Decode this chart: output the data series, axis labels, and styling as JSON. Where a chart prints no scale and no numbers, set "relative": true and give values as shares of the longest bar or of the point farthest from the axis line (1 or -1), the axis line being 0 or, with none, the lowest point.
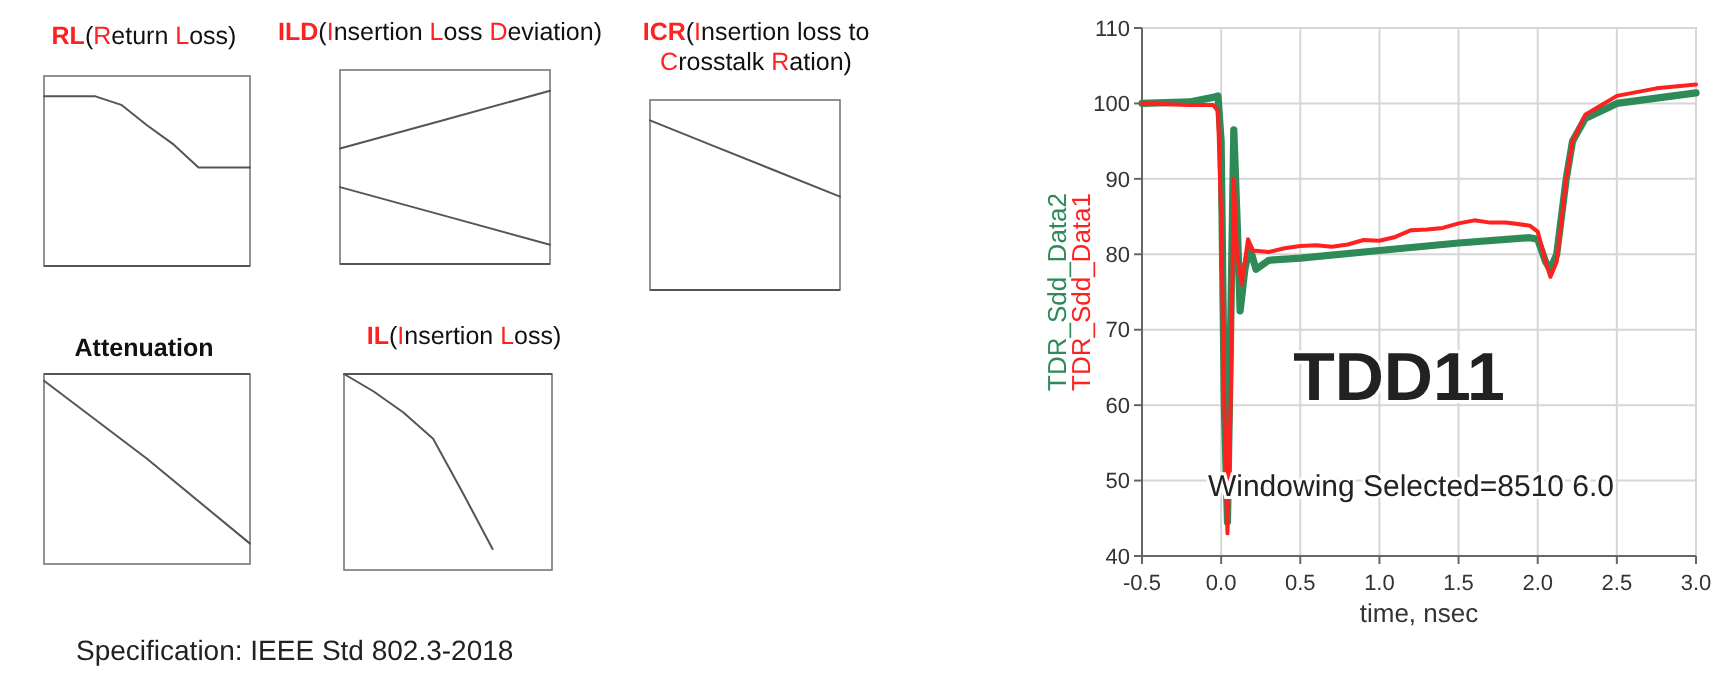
{
  "chart_data": [
    {
      "type": "line",
      "title": "RL(Return Loss)",
      "relative": true,
      "categories": [
        null,
        null,
        null,
        null,
        null,
        null,
        null,
        null,
        null
      ],
      "series": [
        {
          "color": "#555555",
          "values": [
            1,
            1,
            1,
            0.95,
            0.83,
            0.72,
            0.58,
            0.58,
            0.58
          ]
        }
      ]
    },
    {
      "type": "line",
      "title": "ILD(Insertion Loss Deviation)",
      "relative": true,
      "categories": [
        null,
        null,
        null
      ],
      "series": [
        {
          "color": "#555555",
          "values": [
            0.667,
            0.833,
            1
          ]
        },
        {
          "color": "#555555",
          "values": [
            0.444,
            0.278,
            0.111
          ]
        }
      ]
    },
    {
      "type": "line",
      "title": "ICR(Insertion loss to Crosstalk Ration)",
      "relative": true,
      "categories": [
        null,
        null,
        null,
        null
      ],
      "series": [
        {
          "color": "#555555",
          "values": [
            1,
            0.85,
            0.7,
            0.55
          ]
        }
      ]
    },
    {
      "type": "line",
      "title": "Attenuation",
      "relative": true,
      "categories": [
        null,
        null,
        null
      ],
      "series": [
        {
          "color": "#555555",
          "values": [
            -0.04,
            -0.5,
            -1
          ]
        }
      ]
    },
    {
      "type": "line",
      "title": "IL(Insertion Loss)",
      "relative": true,
      "categories": [
        null,
        null,
        null,
        null,
        null,
        null,
        null,
        null
      ],
      "series": [
        {
          "color": "#555555",
          "values": [
            0,
            -0.1,
            -0.22,
            -0.37,
            -0.68,
            -1,
            null,
            null
          ]
        }
      ]
    },
    {
      "type": "other",
      "annotations": [
        "Specification: IEEE Std 802.3-2018"
      ]
    },
    {
      "type": "line",
      "xlabel": "time, nsec",
      "xlim": [
        -0.5,
        3
      ],
      "xticks": [
        -0.5,
        {
          "value": 0,
          "label": "0.0"
        },
        0.5,
        {
          "value": 1,
          "label": "1.0"
        },
        1.5,
        {
          "value": 2,
          "label": "2.0"
        },
        2.5,
        {
          "value": 3,
          "label": "3.0"
        }
      ],
      "ylim": [
        40,
        110
      ],
      "yticks": [
        40,
        50,
        60,
        70,
        80,
        90,
        100,
        110
      ],
      "grid": true,
      "legend": "left",
      "annotations": [
        "TDD11",
        "Windowing Selected=8510 6.0"
      ],
      "series": [
        {
          "name": "TDR_Sdd_Data2",
          "color": "#2e8b57",
          "x": [
            -0.5,
            -0.2,
            -0.05,
            -0.02,
            0,
            0.02,
            0.04,
            0.06,
            0.08,
            0.1,
            0.12,
            0.15,
            0.18,
            0.22,
            0.3,
            0.5,
            1,
            1.5,
            1.95,
            2,
            2.05,
            2.08,
            2.12,
            2.18,
            2.22,
            2.3,
            2.5,
            3
          ],
          "values": [
            100,
            100.2,
            100.8,
            101,
            95,
            60,
            44.5,
            70,
            96.5,
            85,
            72.5,
            78,
            81,
            78,
            79.2,
            79.5,
            80.5,
            81.5,
            82.2,
            82,
            79,
            78,
            80,
            90,
            95,
            98,
            100,
            101.4
          ]
        },
        {
          "name": "TDR_Sdd_Data1",
          "color": "#ff2020",
          "x": [
            -0.5,
            -0.2,
            -0.05,
            -0.02,
            0,
            0.02,
            0.04,
            0.06,
            0.08,
            0.1,
            0.13,
            0.17,
            0.2,
            0.3,
            0.4,
            0.5,
            0.6,
            0.7,
            0.8,
            0.9,
            1,
            1.1,
            1.2,
            1.3,
            1.4,
            1.5,
            1.6,
            1.7,
            1.8,
            1.95,
            2,
            2.05,
            2.08,
            2.12,
            2.18,
            2.22,
            2.3,
            2.5,
            2.75,
            3
          ],
          "values": [
            100,
            99.8,
            99.8,
            99,
            85,
            60,
            43,
            60,
            90,
            80,
            76,
            82,
            80.5,
            80.3,
            80.8,
            81.1,
            81.2,
            81,
            81.3,
            81.9,
            81.8,
            82.3,
            83.2,
            83.3,
            83.5,
            84.1,
            84.5,
            84.2,
            84.2,
            83.8,
            83,
            79,
            77,
            79,
            90,
            95,
            98.5,
            101,
            102,
            102.5
          ]
        }
      ]
    }
  ]
}
